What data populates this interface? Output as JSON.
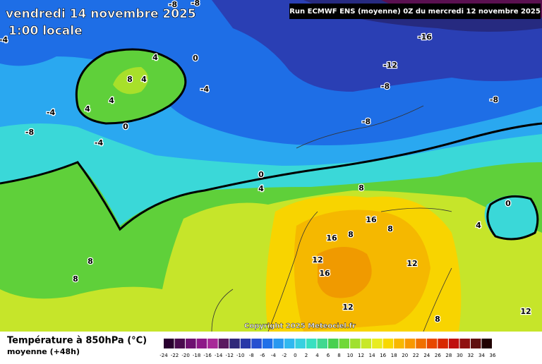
{
  "header": {
    "date": "vendredi 14 novembre 2025",
    "time": "1:00 locale",
    "run": "Run ECMWF ENS (moyenne) 0Z du mercredi 12 novembre 2025"
  },
  "copyright": "Copyright 2025 Meteociel.fr",
  "legend": {
    "title": "Température à 850hPa (°C)",
    "subtitle": "moyenne  (+48h)",
    "labels": [
      -24,
      -22,
      -20,
      -18,
      -16,
      -14,
      -12,
      -10,
      -8,
      -6,
      -4,
      -2,
      0,
      2,
      4,
      6,
      8,
      10,
      12,
      14,
      16,
      18,
      20,
      22,
      24,
      26,
      28,
      30,
      32,
      34,
      36
    ]
  },
  "contour_labels": [
    "-8",
    "-8",
    "-16",
    "-12",
    "-8",
    "-8",
    "-8",
    "-4",
    "-8",
    "-4",
    "-4",
    "4",
    "0",
    "8",
    "4",
    "4",
    "4",
    "0",
    "-4",
    "0",
    "4",
    "8",
    "0",
    "4",
    "16",
    "8",
    "16",
    "8",
    "12",
    "16",
    "12",
    "8",
    "8",
    "12",
    "8",
    "12"
  ]
}
